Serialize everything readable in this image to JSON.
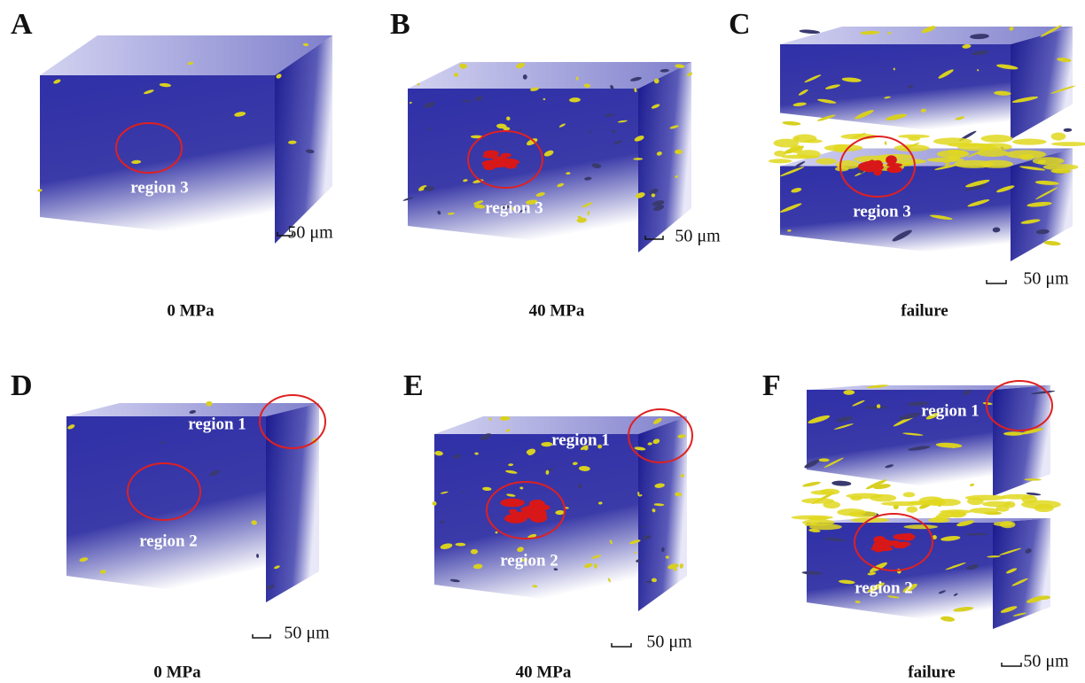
{
  "panels": [
    {
      "label": "A",
      "regions": [
        "region 3"
      ],
      "scale_bar": "50 μm",
      "caption": "0 MPa"
    },
    {
      "label": "B",
      "regions": [
        "region 3"
      ],
      "scale_bar": "50 μm",
      "caption": "40 MPa"
    },
    {
      "label": "C",
      "regions": [
        "region 3"
      ],
      "scale_bar": "50 μm",
      "caption": "failure"
    },
    {
      "label": "D",
      "regions": [
        "region 1",
        "region 2"
      ],
      "scale_bar": "50 μm",
      "caption": "0 MPa"
    },
    {
      "label": "E",
      "regions": [
        "region 1",
        "region 2"
      ],
      "scale_bar": "50 μm",
      "caption": "40 MPa"
    },
    {
      "label": "F",
      "regions": [
        "region 1",
        "region 2"
      ],
      "scale_bar": "50 μm",
      "caption": "failure"
    }
  ]
}
